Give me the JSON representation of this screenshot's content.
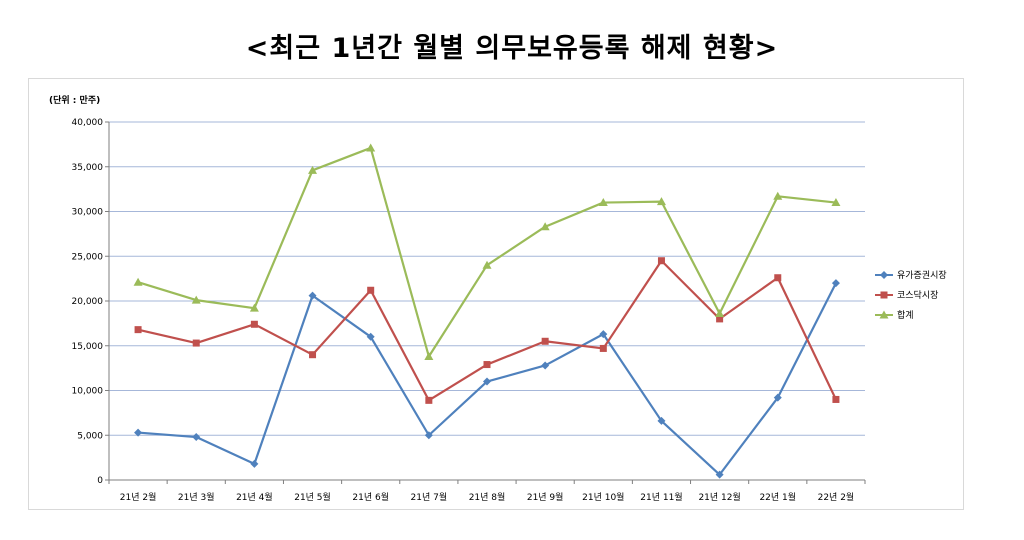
{
  "title": "<최근 1년간 월별 의무보유등록 해제 현황>",
  "chart_data": {
    "type": "line",
    "unit_label": "(단위 : 만주)",
    "categories": [
      "21년 2월",
      "21년 3월",
      "21년 4월",
      "21년 5월",
      "21년 6월",
      "21년 7월",
      "21년 8월",
      "21년 9월",
      "21년 10월",
      "21년 11월",
      "21년 12월",
      "22년 1월",
      "22년 2월"
    ],
    "ylim": [
      0,
      40000
    ],
    "yticks": [
      0,
      5000,
      10000,
      15000,
      20000,
      25000,
      30000,
      35000,
      40000
    ],
    "ytick_labels": [
      "0",
      "5,000",
      "10,000",
      "15,000",
      "20,000",
      "25,000",
      "30,000",
      "35,000",
      "40,000"
    ],
    "grid": true,
    "legend": "right",
    "series": [
      {
        "name": "유가증권시장",
        "color": "#4f81bd",
        "marker": "diamond",
        "values": [
          5300,
          4800,
          1800,
          20600,
          16000,
          5000,
          11000,
          12800,
          16300,
          6600,
          600,
          9200,
          22000
        ]
      },
      {
        "name": "코스닥시장",
        "color": "#c0504d",
        "marker": "square",
        "values": [
          16800,
          15300,
          17400,
          14000,
          21200,
          8900,
          12900,
          15500,
          14700,
          24500,
          18000,
          22600,
          9000
        ]
      },
      {
        "name": "합계",
        "color": "#9bbb59",
        "marker": "triangle",
        "values": [
          22100,
          20100,
          19200,
          34600,
          37100,
          13800,
          24000,
          28300,
          31000,
          31100,
          18600,
          31700,
          31000
        ]
      }
    ]
  }
}
